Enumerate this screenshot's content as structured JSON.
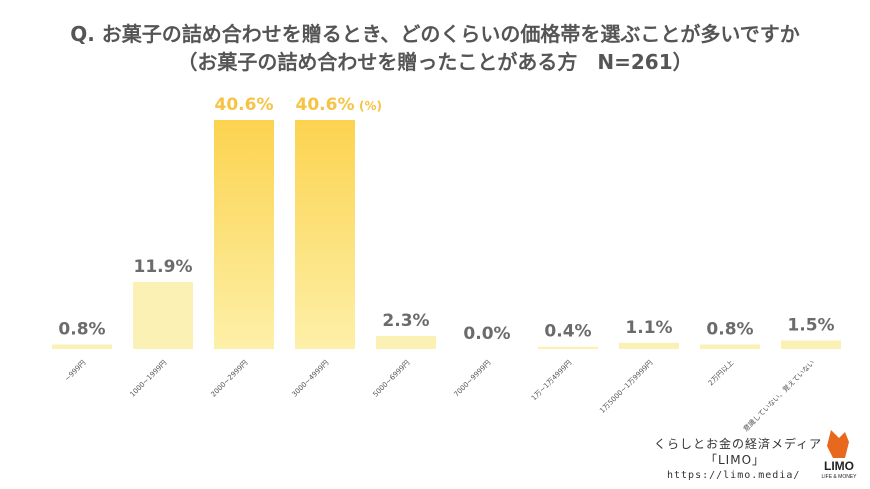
{
  "title": {
    "line1": "Q. お菓子の詰め合わせを贈るとき、どのくらいの価格帯を選ぶことが多いですか",
    "line2": "（お菓子の詰め合わせを贈ったことがある方　N=261）"
  },
  "chart_data": {
    "type": "bar",
    "title": "Q. お菓子の詰め合わせを贈るとき、どのくらいの価格帯を選ぶことが多いですか",
    "subtitle": "（お菓子の詰め合わせを贈ったことがある方　N=261）",
    "unit": "(%)",
    "categories": [
      "~999円",
      "1000~1999円",
      "2000~2999円",
      "3000~4999円",
      "5000~6999円",
      "7000~9999円",
      "1万~1万4999円",
      "1万5000~1万9999円",
      "2万円以上",
      "意識していない、覚えていない"
    ],
    "values": [
      0.8,
      11.9,
      40.6,
      40.6,
      2.3,
      0.0,
      0.4,
      1.1,
      0.8,
      1.5
    ],
    "value_labels": [
      "0.8%",
      "11.9%",
      "40.6%",
      "40.6%",
      "2.3%",
      "0.0%",
      "0.4%",
      "1.1%",
      "0.8%",
      "1.5%"
    ],
    "highlighted": [
      false,
      false,
      true,
      true,
      false,
      false,
      false,
      false,
      false,
      false
    ],
    "ylim": [
      0,
      40.6
    ],
    "grid": false,
    "colors": {
      "bar": "#fbf1b5",
      "highlight_top": "#fcd34f",
      "highlight_bottom": "#fdf0a8",
      "value_label": "#6b6b6b",
      "highlight_label": "#f6c343",
      "axis": "#bbbbbb"
    }
  },
  "footer": {
    "tagline": "くらしとお金の経済メディア",
    "brand": "「LIMO」",
    "url": "https://limo.media/"
  },
  "logo": {
    "icon": "fox-logo-icon",
    "text": "LIMO",
    "subtext": "LIFE & MONEY",
    "color": "#e8691e"
  }
}
